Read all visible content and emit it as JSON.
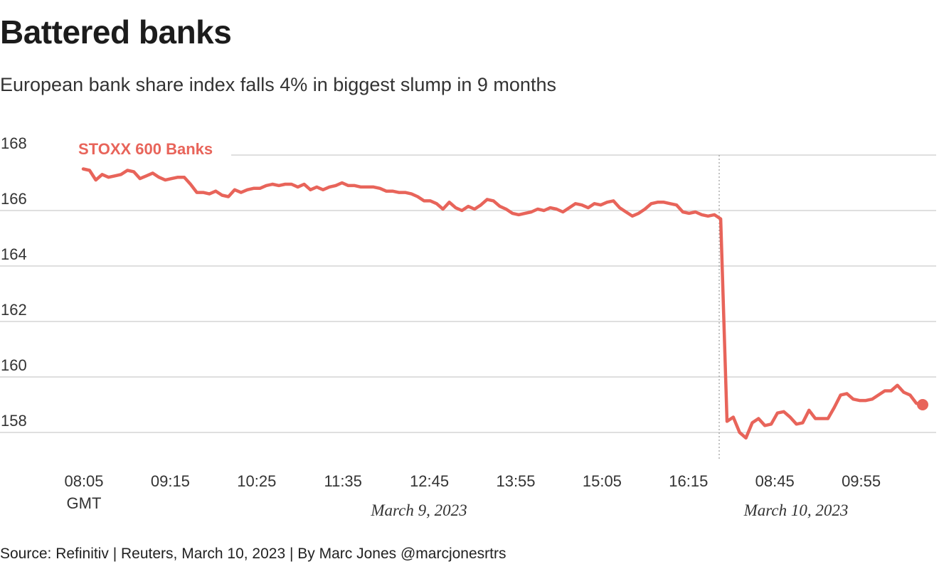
{
  "title": "Battered banks",
  "subtitle": "European bank share index falls 4% in biggest slump in 9 months",
  "source": "Source: Refinitiv | Reuters, March 10, 2023 | By Marc Jones @marcjonesrtrs",
  "colors": {
    "line": "#e8645a",
    "grid": "#cccccc",
    "divider": "#999999"
  },
  "chart_data": {
    "type": "line",
    "series": [
      {
        "name": "STOXX 600 Banks",
        "values": [
          167.5,
          167.45,
          167.1,
          167.3,
          167.2,
          167.25,
          167.3,
          167.45,
          167.4,
          167.15,
          167.25,
          167.35,
          167.2,
          167.1,
          167.15,
          167.2,
          167.2,
          166.95,
          166.65,
          166.65,
          166.6,
          166.7,
          166.55,
          166.5,
          166.75,
          166.65,
          166.75,
          166.8,
          166.8,
          166.9,
          166.95,
          166.9,
          166.95,
          166.95,
          166.85,
          166.95,
          166.75,
          166.85,
          166.75,
          166.85,
          166.9,
          167.0,
          166.9,
          166.9,
          166.85,
          166.85,
          166.85,
          166.8,
          166.7,
          166.7,
          166.65,
          166.65,
          166.6,
          166.5,
          166.35,
          166.35,
          166.25,
          166.05,
          166.3,
          166.1,
          166.0,
          166.15,
          166.05,
          166.2,
          166.4,
          166.35,
          166.15,
          166.05,
          165.9,
          165.85,
          165.9,
          165.95,
          166.05,
          166.0,
          166.1,
          166.05,
          165.95,
          166.1,
          166.25,
          166.2,
          166.1,
          166.25,
          166.2,
          166.3,
          166.35,
          166.1,
          165.95,
          165.8,
          165.9,
          166.05,
          166.25,
          166.3,
          166.3,
          166.25,
          166.2,
          165.95,
          165.9,
          165.95,
          165.85,
          165.8,
          165.85,
          165.7,
          158.4,
          158.55,
          158.0,
          157.8,
          158.35,
          158.5,
          158.25,
          158.3,
          158.7,
          158.75,
          158.55,
          158.3,
          158.35,
          158.8,
          158.5,
          158.5,
          158.5,
          158.9,
          159.35,
          159.4,
          159.2,
          159.15,
          159.15,
          159.2,
          159.35,
          159.5,
          159.5,
          159.7,
          159.45,
          159.35,
          159.05,
          159.0
        ]
      }
    ],
    "time_labels": [
      "08:05",
      "09:15",
      "10:25",
      "11:35",
      "12:45",
      "13:55",
      "15:05",
      "16:15",
      "08:45",
      "09:55"
    ],
    "timezone_label": "GMT",
    "date_labels": [
      "March 9, 2023",
      "March 10, 2023"
    ],
    "yticks": [
      158,
      160,
      162,
      164,
      166,
      168
    ],
    "ylim": [
      157,
      168.5
    ],
    "grid": true,
    "legend": "inline label at top-left of line",
    "endpoint_marker": true
  }
}
